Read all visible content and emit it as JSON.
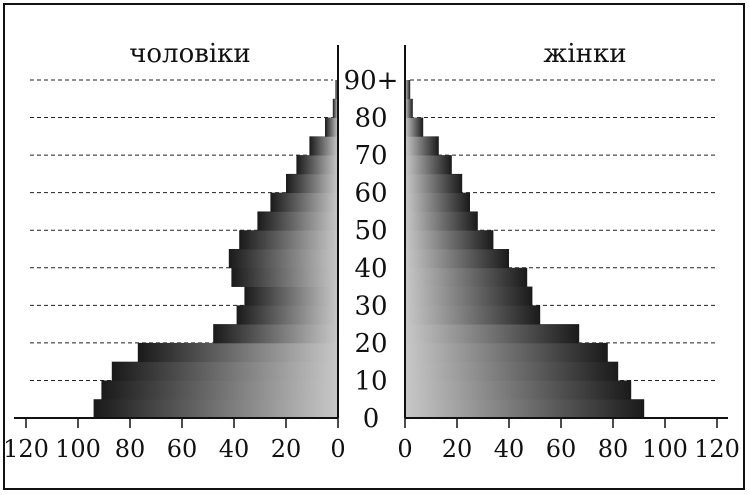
{
  "chart_data": {
    "type": "bar",
    "subtype": "population-pyramid",
    "left_title": "чоловіки",
    "right_title": "жінки",
    "age_labels": [
      "0",
      "10",
      "20",
      "30",
      "40",
      "50",
      "60",
      "70",
      "80",
      "90+"
    ],
    "x_ticks": [
      120,
      100,
      80,
      60,
      40,
      20,
      0
    ],
    "x_ticks_right": [
      0,
      20,
      40,
      60,
      80,
      100,
      120
    ],
    "xlim": [
      0,
      120
    ],
    "age_groups_years": 5,
    "series": [
      {
        "name": "чоловіки",
        "side": "left",
        "values": [
          94,
          91,
          87,
          77,
          48,
          39,
          36,
          41,
          42,
          38,
          31,
          26,
          20,
          16,
          11,
          5,
          2,
          1
        ]
      },
      {
        "name": "жінки",
        "side": "right",
        "values": [
          92,
          87,
          82,
          78,
          67,
          52,
          49,
          47,
          40,
          34,
          28,
          25,
          22,
          18,
          13,
          7,
          3,
          2
        ]
      }
    ],
    "grid": "dashed horizontal lines at every 10 years",
    "colors": {
      "bar_dark": "#1a1a1a",
      "bar_light": "#c8c8c8",
      "border": "#111111"
    }
  }
}
